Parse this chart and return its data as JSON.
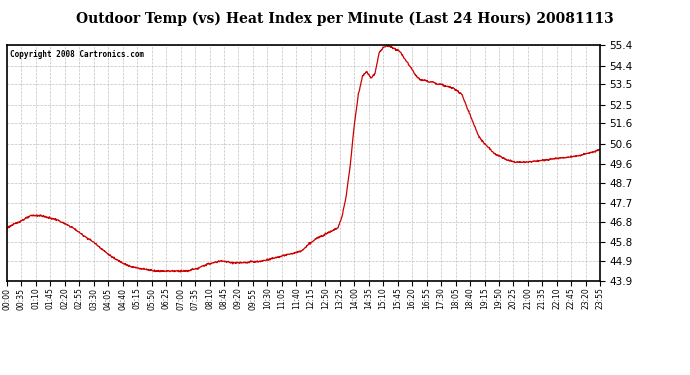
{
  "title": "Outdoor Temp (vs) Heat Index per Minute (Last 24 Hours) 20081113",
  "copyright": "Copyright 2008 Cartronics.com",
  "line_color": "#cc0000",
  "background_color": "#ffffff",
  "grid_color": "#bbbbbb",
  "yticks": [
    43.9,
    44.9,
    45.8,
    46.8,
    47.7,
    48.7,
    49.6,
    50.6,
    51.6,
    52.5,
    53.5,
    54.4,
    55.4
  ],
  "ymin": 43.9,
  "ymax": 55.4,
  "xtick_labels": [
    "00:00",
    "00:35",
    "01:10",
    "01:45",
    "02:20",
    "02:55",
    "03:30",
    "04:05",
    "04:40",
    "05:15",
    "05:50",
    "06:25",
    "07:00",
    "07:35",
    "08:10",
    "08:45",
    "09:20",
    "09:55",
    "10:30",
    "11:05",
    "11:40",
    "12:15",
    "12:50",
    "13:25",
    "14:00",
    "14:35",
    "15:10",
    "15:45",
    "16:20",
    "16:55",
    "17:30",
    "18:05",
    "18:40",
    "19:15",
    "19:50",
    "20:25",
    "21:00",
    "21:35",
    "22:10",
    "22:45",
    "23:20",
    "23:55"
  ],
  "curve_points": {
    "minutes": [
      0,
      30,
      60,
      80,
      100,
      120,
      140,
      160,
      180,
      210,
      240,
      260,
      280,
      300,
      330,
      360,
      390,
      420,
      440,
      450,
      460,
      470,
      480,
      490,
      500,
      510,
      520,
      530,
      545,
      560,
      570,
      580,
      590,
      600,
      610,
      620,
      630,
      640,
      650,
      660,
      670,
      680,
      690,
      700,
      710,
      720,
      730,
      740,
      750,
      760,
      770,
      780,
      790,
      800,
      810,
      820,
      830,
      840,
      850,
      860,
      870,
      880,
      890,
      900,
      910,
      920,
      930,
      940,
      950,
      960,
      970,
      980,
      990,
      1000,
      1010,
      1020,
      1030,
      1040,
      1050,
      1060,
      1080,
      1100,
      1110,
      1120,
      1130,
      1140,
      1150,
      1160,
      1170,
      1180,
      1190,
      1200,
      1210,
      1220,
      1230,
      1240,
      1260,
      1280,
      1300,
      1320,
      1340,
      1360,
      1380,
      1400,
      1420,
      1439
    ],
    "values": [
      46.5,
      46.8,
      47.1,
      47.1,
      47.0,
      46.9,
      46.7,
      46.5,
      46.2,
      45.8,
      45.3,
      45.0,
      44.8,
      44.6,
      44.5,
      44.4,
      44.4,
      44.4,
      44.4,
      44.5,
      44.5,
      44.6,
      44.7,
      44.75,
      44.8,
      44.85,
      44.9,
      44.85,
      44.8,
      44.8,
      44.8,
      44.8,
      44.85,
      44.85,
      44.85,
      44.9,
      44.95,
      45.0,
      45.05,
      45.1,
      45.15,
      45.2,
      45.25,
      45.3,
      45.35,
      45.5,
      45.7,
      45.85,
      46.0,
      46.1,
      46.2,
      46.3,
      46.4,
      46.5,
      47.0,
      48.0,
      49.5,
      51.5,
      53.0,
      53.9,
      54.1,
      53.8,
      54.0,
      55.0,
      55.3,
      55.35,
      55.3,
      55.2,
      55.1,
      54.8,
      54.5,
      54.2,
      53.9,
      53.7,
      53.7,
      53.6,
      53.6,
      53.5,
      53.5,
      53.4,
      53.3,
      53.0,
      52.5,
      52.0,
      51.5,
      51.0,
      50.7,
      50.5,
      50.3,
      50.1,
      50.0,
      49.9,
      49.8,
      49.75,
      49.7,
      49.7,
      49.7,
      49.75,
      49.8,
      49.85,
      49.9,
      49.95,
      50.0,
      50.1,
      50.2,
      50.35
    ]
  }
}
